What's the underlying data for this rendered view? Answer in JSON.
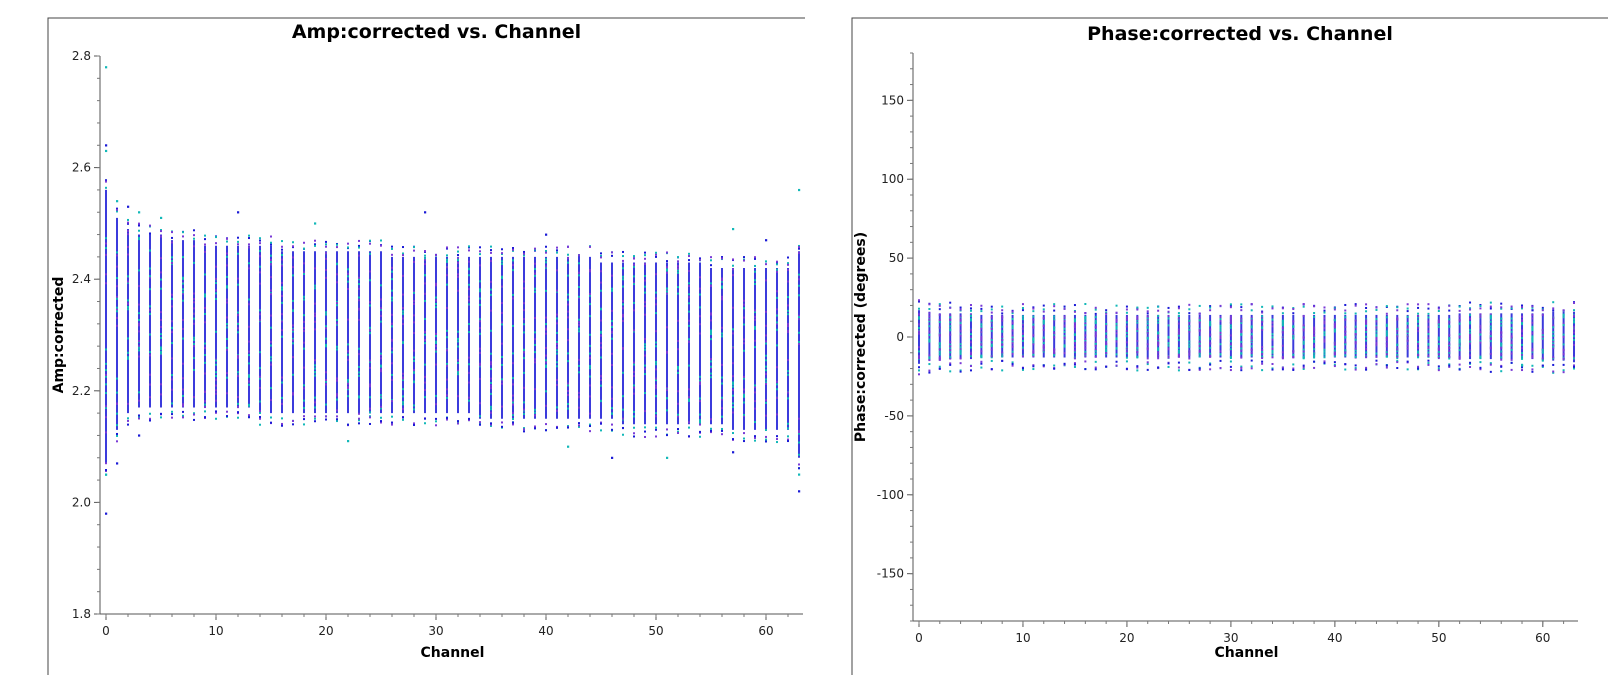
{
  "chart_data": [
    {
      "type": "scatter",
      "title": "Amp:corrected vs. Channel",
      "xlabel": "Channel",
      "ylabel": "Amp:corrected",
      "xlim": [
        0,
        63
      ],
      "ylim": [
        1.8,
        2.8
      ],
      "xticks": [
        "0",
        "10",
        "20",
        "30",
        "40",
        "50",
        "60"
      ],
      "yticks": [
        "1.8",
        "2.0",
        "2.2",
        "2.4",
        "2.6",
        "2.8"
      ],
      "grid": false,
      "legend": "none",
      "series_colors": [
        "#1a1ad6",
        "#12b8b8",
        "#7a3ad6"
      ],
      "channels": [
        0,
        1,
        2,
        3,
        4,
        5,
        6,
        7,
        8,
        9,
        10,
        11,
        12,
        13,
        14,
        15,
        16,
        17,
        18,
        19,
        20,
        21,
        22,
        23,
        24,
        25,
        26,
        27,
        28,
        29,
        30,
        31,
        32,
        33,
        34,
        35,
        36,
        37,
        38,
        39,
        40,
        41,
        42,
        43,
        44,
        45,
        46,
        47,
        48,
        49,
        50,
        51,
        52,
        53,
        54,
        55,
        56,
        57,
        58,
        59,
        60,
        61,
        62,
        63
      ],
      "y_min": [
        2.07,
        2.13,
        2.16,
        2.17,
        2.17,
        2.17,
        2.17,
        2.17,
        2.17,
        2.17,
        2.17,
        2.17,
        2.17,
        2.17,
        2.16,
        2.16,
        2.16,
        2.16,
        2.16,
        2.16,
        2.16,
        2.16,
        2.16,
        2.16,
        2.16,
        2.16,
        2.16,
        2.16,
        2.16,
        2.16,
        2.16,
        2.16,
        2.16,
        2.16,
        2.15,
        2.15,
        2.15,
        2.15,
        2.15,
        2.15,
        2.15,
        2.15,
        2.15,
        2.15,
        2.15,
        2.15,
        2.15,
        2.14,
        2.14,
        2.14,
        2.14,
        2.14,
        2.14,
        2.14,
        2.14,
        2.14,
        2.14,
        2.13,
        2.13,
        2.13,
        2.13,
        2.13,
        2.13,
        2.08
      ],
      "y_max": [
        2.56,
        2.51,
        2.49,
        2.48,
        2.48,
        2.48,
        2.47,
        2.47,
        2.47,
        2.46,
        2.46,
        2.46,
        2.46,
        2.46,
        2.46,
        2.46,
        2.45,
        2.45,
        2.45,
        2.45,
        2.45,
        2.45,
        2.45,
        2.45,
        2.45,
        2.45,
        2.44,
        2.44,
        2.44,
        2.44,
        2.44,
        2.44,
        2.44,
        2.44,
        2.44,
        2.44,
        2.44,
        2.44,
        2.44,
        2.44,
        2.44,
        2.44,
        2.44,
        2.44,
        2.44,
        2.43,
        2.43,
        2.43,
        2.43,
        2.43,
        2.43,
        2.43,
        2.43,
        2.43,
        2.43,
        2.42,
        2.42,
        2.42,
        2.42,
        2.42,
        2.42,
        2.42,
        2.42,
        2.45
      ],
      "outliers": [
        {
          "x": 0,
          "y": 2.78
        },
        {
          "x": 0,
          "y": 2.64
        },
        {
          "x": 0,
          "y": 2.63
        },
        {
          "x": 0,
          "y": 1.98
        },
        {
          "x": 0,
          "y": 2.05
        },
        {
          "x": 1,
          "y": 2.07
        },
        {
          "x": 1,
          "y": 2.54
        },
        {
          "x": 2,
          "y": 2.53
        },
        {
          "x": 3,
          "y": 2.52
        },
        {
          "x": 3,
          "y": 2.12
        },
        {
          "x": 5,
          "y": 2.51
        },
        {
          "x": 12,
          "y": 2.52
        },
        {
          "x": 19,
          "y": 2.5
        },
        {
          "x": 29,
          "y": 2.52
        },
        {
          "x": 22,
          "y": 2.11
        },
        {
          "x": 40,
          "y": 2.48
        },
        {
          "x": 42,
          "y": 2.1
        },
        {
          "x": 46,
          "y": 2.08
        },
        {
          "x": 51,
          "y": 2.08
        },
        {
          "x": 57,
          "y": 2.09
        },
        {
          "x": 57,
          "y": 2.49
        },
        {
          "x": 60,
          "y": 2.47
        },
        {
          "x": 63,
          "y": 2.56
        },
        {
          "x": 63,
          "y": 2.02
        },
        {
          "x": 63,
          "y": 2.05
        }
      ]
    },
    {
      "type": "scatter",
      "title": "Phase:corrected vs. Channel",
      "xlabel": "Channel",
      "ylabel": "Phase:corrected (degrees)",
      "xlim": [
        0,
        63
      ],
      "ylim": [
        -180,
        180
      ],
      "xticks": [
        "0",
        "10",
        "20",
        "30",
        "40",
        "50",
        "60"
      ],
      "yticks": [
        "-150",
        "-100",
        "-50",
        "0",
        "50",
        "100",
        "150"
      ],
      "grid": false,
      "legend": "none",
      "series_colors": [
        "#1a1ad6",
        "#12b8b8",
        "#7a3ad6"
      ],
      "channels": [
        0,
        1,
        2,
        3,
        4,
        5,
        6,
        7,
        8,
        9,
        10,
        11,
        12,
        13,
        14,
        15,
        16,
        17,
        18,
        19,
        20,
        21,
        22,
        23,
        24,
        25,
        26,
        27,
        28,
        29,
        30,
        31,
        32,
        33,
        34,
        35,
        36,
        37,
        38,
        39,
        40,
        41,
        42,
        43,
        44,
        45,
        46,
        47,
        48,
        49,
        50,
        51,
        52,
        53,
        54,
        55,
        56,
        57,
        58,
        59,
        60,
        61,
        62,
        63
      ],
      "y_min": [
        -17,
        -15,
        -14,
        -14,
        -14,
        -14,
        -13,
        -13,
        -13,
        -13,
        -13,
        -13,
        -13,
        -13,
        -13,
        -13,
        -13,
        -13,
        -13,
        -13,
        -13,
        -13,
        -13,
        -13,
        -13,
        -13,
        -13,
        -13,
        -13,
        -13,
        -13,
        -13,
        -13,
        -13,
        -13,
        -13,
        -13,
        -13,
        -13,
        -13,
        -13,
        -13,
        -13,
        -13,
        -13,
        -13,
        -13,
        -13,
        -13,
        -13,
        -13,
        -13,
        -14,
        -14,
        -14,
        -14,
        -14,
        -14,
        -14,
        -14,
        -15,
        -15,
        -15,
        -16
      ],
      "y_max": [
        17,
        16,
        15,
        15,
        15,
        15,
        14,
        14,
        14,
        14,
        14,
        14,
        14,
        14,
        14,
        14,
        14,
        14,
        14,
        14,
        14,
        14,
        14,
        14,
        14,
        14,
        14,
        14,
        14,
        14,
        14,
        14,
        14,
        14,
        14,
        14,
        14,
        14,
        14,
        14,
        14,
        14,
        14,
        14,
        14,
        14,
        14,
        14,
        14,
        14,
        14,
        14,
        15,
        15,
        15,
        15,
        15,
        15,
        15,
        15,
        15,
        16,
        16,
        16
      ],
      "outliers": [
        {
          "x": 58,
          "y": -18
        },
        {
          "x": 59,
          "y": 17
        }
      ]
    }
  ]
}
